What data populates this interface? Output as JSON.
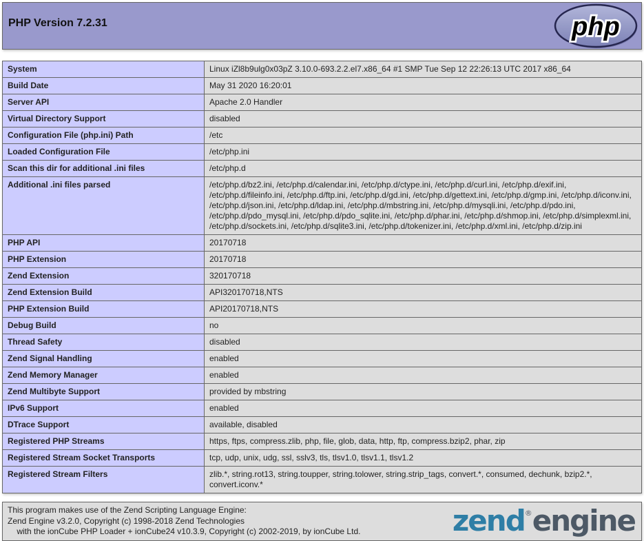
{
  "colors": {
    "page_bg": "#ffffff",
    "text": "#222222",
    "header_bg": "#9999cc",
    "label_cell_bg": "#ccccff",
    "value_cell_bg": "#dddddd",
    "cell_border": "#666666",
    "zend_blue": "#2e7ea6",
    "zend_slate": "#4d5966",
    "php_logo_light": "#b2b6da",
    "php_logo_dark": "#7b80b5",
    "php_logo_stroke": "#26264f"
  },
  "header": {
    "title": "PHP Version 7.2.31",
    "logo_text": "php"
  },
  "info_table": {
    "rows": [
      {
        "label": "System",
        "value": "Linux iZl8b9ulg0x03pZ 3.10.0-693.2.2.el7.x86_64 #1 SMP Tue Sep 12 22:26:13 UTC 2017 x86_64"
      },
      {
        "label": "Build Date",
        "value": "May 31 2020 16:20:01"
      },
      {
        "label": "Server API",
        "value": "Apache 2.0 Handler"
      },
      {
        "label": "Virtual Directory Support",
        "value": "disabled"
      },
      {
        "label": "Configuration File (php.ini) Path",
        "value": "/etc"
      },
      {
        "label": "Loaded Configuration File",
        "value": "/etc/php.ini"
      },
      {
        "label": "Scan this dir for additional .ini files",
        "value": "/etc/php.d"
      },
      {
        "label": "Additional .ini files parsed",
        "value": "/etc/php.d/bz2.ini, /etc/php.d/calendar.ini, /etc/php.d/ctype.ini, /etc/php.d/curl.ini, /etc/php.d/exif.ini, /etc/php.d/fileinfo.ini, /etc/php.d/ftp.ini, /etc/php.d/gd.ini, /etc/php.d/gettext.ini, /etc/php.d/gmp.ini, /etc/php.d/iconv.ini, /etc/php.d/json.ini, /etc/php.d/ldap.ini, /etc/php.d/mbstring.ini, /etc/php.d/mysqli.ini, /etc/php.d/pdo.ini, /etc/php.d/pdo_mysql.ini, /etc/php.d/pdo_sqlite.ini, /etc/php.d/phar.ini, /etc/php.d/shmop.ini, /etc/php.d/simplexml.ini, /etc/php.d/sockets.ini, /etc/php.d/sqlite3.ini, /etc/php.d/tokenizer.ini, /etc/php.d/xml.ini, /etc/php.d/zip.ini"
      },
      {
        "label": "PHP API",
        "value": "20170718"
      },
      {
        "label": "PHP Extension",
        "value": "20170718"
      },
      {
        "label": "Zend Extension",
        "value": "320170718"
      },
      {
        "label": "Zend Extension Build",
        "value": "API320170718,NTS"
      },
      {
        "label": "PHP Extension Build",
        "value": "API20170718,NTS"
      },
      {
        "label": "Debug Build",
        "value": "no"
      },
      {
        "label": "Thread Safety",
        "value": "disabled"
      },
      {
        "label": "Zend Signal Handling",
        "value": "enabled"
      },
      {
        "label": "Zend Memory Manager",
        "value": "enabled"
      },
      {
        "label": "Zend Multibyte Support",
        "value": "provided by mbstring"
      },
      {
        "label": "IPv6 Support",
        "value": "enabled"
      },
      {
        "label": "DTrace Support",
        "value": "available, disabled"
      },
      {
        "label": "Registered PHP Streams",
        "value": "https, ftps, compress.zlib, php, file, glob, data, http, ftp, compress.bzip2, phar, zip"
      },
      {
        "label": "Registered Stream Socket Transports",
        "value": "tcp, udp, unix, udg, ssl, sslv3, tls, tlsv1.0, tlsv1.1, tlsv1.2"
      },
      {
        "label": "Registered Stream Filters",
        "value": "zlib.*, string.rot13, string.toupper, string.tolower, string.strip_tags, convert.*, consumed, dechunk, bzip2.*, convert.iconv.*"
      }
    ]
  },
  "footer": {
    "lines": [
      "This program makes use of the Zend Scripting Language Engine:",
      "Zend Engine v3.2.0, Copyright (c) 1998-2018 Zend Technologies",
      "    with the ionCube PHP Loader + ionCube24 v10.3.9, Copyright (c) 2002-2019, by ionCube Ltd."
    ],
    "zend_logo": {
      "zend": "zend",
      "reg": "®",
      "engine": "engine"
    }
  }
}
